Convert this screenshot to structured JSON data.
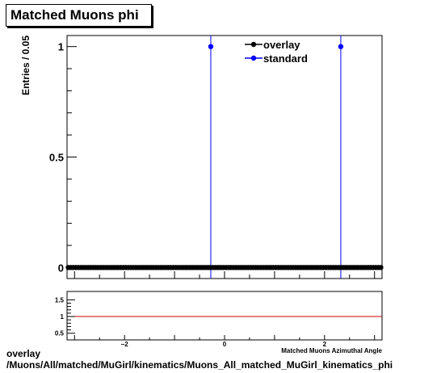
{
  "chart_data": [
    {
      "type": "scatter",
      "title": "Matched Muons phi",
      "ylabel": "Entries / 0.05",
      "xlim": [
        -3.15,
        3.15
      ],
      "ylim": [
        -0.05,
        1.05
      ],
      "yticks": [
        "0",
        "0.5",
        "1"
      ],
      "legend": {
        "placement": "top-right",
        "entries": [
          "overlay",
          "standard"
        ]
      },
      "series": [
        {
          "name": "overlay",
          "color": "#000000",
          "x": [
            -3.125,
            -3.075,
            -3.025,
            -2.975,
            -2.925,
            -2.875,
            -2.825,
            -2.775,
            -2.725,
            -2.675,
            -2.625,
            -2.575,
            -2.525,
            -2.475,
            -2.425,
            -2.375,
            -2.325,
            -2.275,
            -2.225,
            -2.175,
            -2.125,
            -2.075,
            -2.025,
            -1.975,
            -1.925,
            -1.875,
            -1.825,
            -1.775,
            -1.725,
            -1.675,
            -1.625,
            -1.575,
            -1.525,
            -1.475,
            -1.425,
            -1.375,
            -1.325,
            -1.275,
            -1.225,
            -1.175,
            -1.125,
            -1.075,
            -1.025,
            -0.975,
            -0.925,
            -0.875,
            -0.825,
            -0.775,
            -0.725,
            -0.675,
            -0.625,
            -0.575,
            -0.525,
            -0.475,
            -0.425,
            -0.375,
            -0.325,
            -0.275,
            -0.225,
            -0.175,
            -0.125,
            -0.075,
            -0.025,
            0.025,
            0.075,
            0.125,
            0.175,
            0.225,
            0.275,
            0.325,
            0.375,
            0.425,
            0.475,
            0.525,
            0.575,
            0.625,
            0.675,
            0.725,
            0.775,
            0.825,
            0.875,
            0.925,
            0.975,
            1.025,
            1.075,
            1.125,
            1.175,
            1.225,
            1.275,
            1.325,
            1.375,
            1.425,
            1.475,
            1.525,
            1.575,
            1.625,
            1.675,
            1.725,
            1.775,
            1.825,
            1.875,
            1.925,
            1.975,
            2.025,
            2.075,
            2.125,
            2.175,
            2.225,
            2.275,
            2.325,
            2.375,
            2.425,
            2.475,
            2.525,
            2.575,
            2.625,
            2.675,
            2.725,
            2.775,
            2.825,
            2.875,
            2.925,
            2.975,
            3.025,
            3.075,
            3.125
          ],
          "y": [
            0,
            0,
            0,
            0,
            0,
            0,
            0,
            0,
            0,
            0,
            0,
            0,
            0,
            0,
            0,
            0,
            0,
            0,
            0,
            0,
            0,
            0,
            0,
            0,
            0,
            0,
            0,
            0,
            0,
            0,
            0,
            0,
            0,
            0,
            0,
            0,
            0,
            0,
            0,
            0,
            0,
            0,
            0,
            0,
            0,
            0,
            0,
            0,
            0,
            0,
            0,
            0,
            0,
            0,
            0,
            0,
            0,
            0,
            0,
            0,
            0,
            0,
            0,
            0,
            0,
            0,
            0,
            0,
            0,
            0,
            0,
            0,
            0,
            0,
            0,
            0,
            0,
            0,
            0,
            0,
            0,
            0,
            0,
            0,
            0,
            0,
            0,
            0,
            0,
            0,
            0,
            0,
            0,
            0,
            0,
            0,
            0,
            0,
            0,
            0,
            0,
            0,
            0,
            0,
            0,
            0,
            0,
            0,
            0,
            0,
            0,
            0,
            0,
            0,
            0,
            0,
            0,
            0,
            0,
            0,
            0,
            0,
            0,
            0,
            0,
            0
          ]
        },
        {
          "name": "standard",
          "color": "#0000ff",
          "x": [
            -0.275,
            2.325
          ],
          "y": [
            1,
            1
          ]
        }
      ]
    },
    {
      "type": "line",
      "xlabel": "Matched Muons Azimuthal Angle",
      "xlim": [
        -3.15,
        3.15
      ],
      "ylim": [
        0.3,
        1.75
      ],
      "xticks": [
        "−2",
        "0",
        "2"
      ],
      "yticks": [
        "0.5",
        "1",
        "1.5"
      ],
      "reference_line": {
        "y": 1,
        "color": "#cc0000"
      }
    }
  ],
  "footer": {
    "line1": "overlay",
    "line2": "/Muons/All/matched/MuGirl/kinematics/Muons_All_matched_MuGirl_kinematics_phi"
  }
}
